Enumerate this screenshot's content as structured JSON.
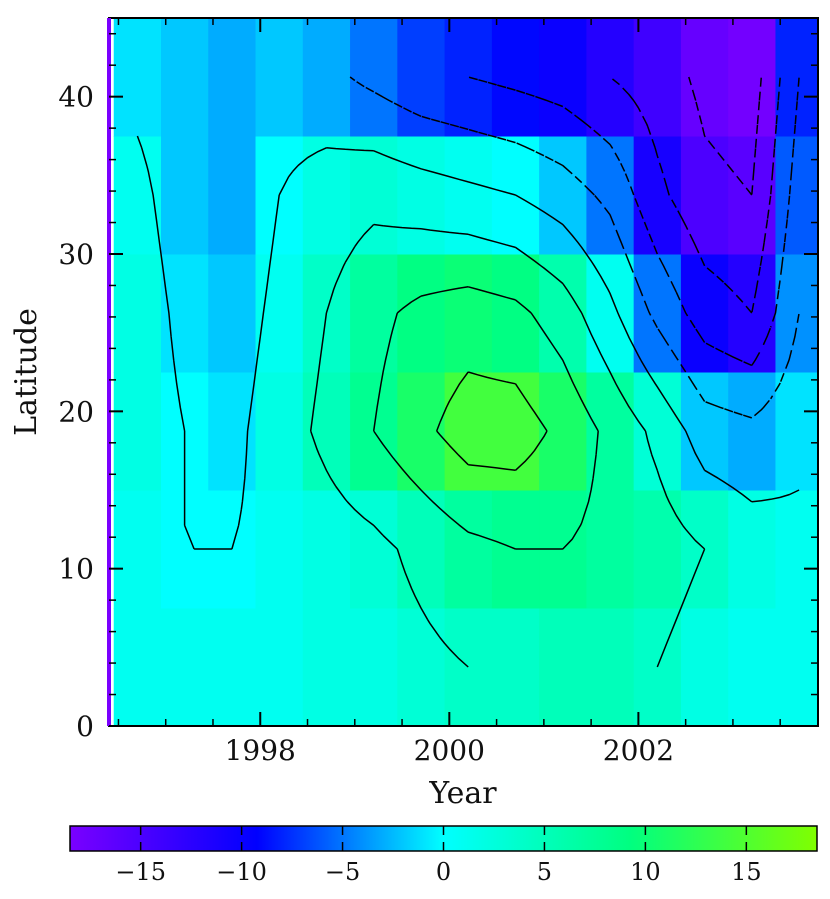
{
  "chart_data": {
    "type": "heatmap",
    "xlabel": "Year",
    "ylabel": "Latitude",
    "xlim": [
      1996.4,
      2003.9
    ],
    "ylim": [
      0,
      45
    ],
    "x_ticks": [
      {
        "value": 1998,
        "label": "1998"
      },
      {
        "value": 2000,
        "label": "2000"
      },
      {
        "value": 2002,
        "label": "2002"
      }
    ],
    "y_ticks": [
      {
        "value": 0,
        "label": "0"
      },
      {
        "value": 10,
        "label": "10"
      },
      {
        "value": 20,
        "label": "20"
      },
      {
        "value": 30,
        "label": "30"
      },
      {
        "value": 40,
        "label": "40"
      }
    ],
    "x_centers": [
      1996.7,
      1997.2,
      1997.7,
      1998.2,
      1998.7,
      1999.2,
      1999.7,
      2000.2,
      2000.7,
      2001.2,
      2001.7,
      2002.2,
      2002.7,
      2003.2,
      2003.7
    ],
    "x_edges": [
      1996.45,
      1996.95,
      1997.45,
      1997.95,
      1998.45,
      1998.95,
      1999.45,
      1999.95,
      2000.45,
      2000.95,
      2001.45,
      2001.95,
      2002.45,
      2002.95,
      2003.45,
      2003.95
    ],
    "y_centers": [
      3.75,
      11.25,
      18.75,
      26.25,
      33.75,
      41.25
    ],
    "y_edges": [
      0,
      7.5,
      15,
      22.5,
      30,
      37.5,
      45
    ],
    "values": [
      [
        1,
        1,
        1,
        1,
        2,
        2,
        3,
        4,
        4,
        5,
        5,
        4,
        2,
        1,
        1
      ],
      [
        1,
        0,
        0,
        1,
        2,
        3,
        5,
        7,
        8,
        8,
        7,
        6,
        4,
        2,
        1
      ],
      [
        2,
        0,
        -1,
        2,
        5,
        8,
        11,
        14,
        14,
        11,
        7,
        3,
        -2,
        -3,
        -1
      ],
      [
        2,
        -1,
        -2,
        1,
        4,
        7,
        9,
        10,
        9,
        6,
        1,
        -5,
        -10,
        -12,
        -4
      ],
      [
        1,
        -2,
        -3,
        0,
        2,
        3,
        2,
        1,
        0,
        -2,
        -5,
        -11,
        -15,
        -16,
        -6
      ],
      [
        -1,
        -2,
        -3,
        -2,
        -3,
        -5,
        -7,
        -8,
        -9,
        -10,
        -12,
        -14,
        -17,
        -18,
        -8
      ]
    ],
    "contour_levels": [
      -16,
      -12,
      -8,
      -4,
      0,
      4,
      8,
      12,
      16
    ],
    "colorbar": {
      "min": -18.5,
      "max": 18.5,
      "ticks": [
        {
          "value": -15,
          "label": "−15"
        },
        {
          "value": -10,
          "label": "−10"
        },
        {
          "value": -5,
          "label": "−5"
        },
        {
          "value": 0,
          "label": "0"
        },
        {
          "value": 5,
          "label": "5"
        },
        {
          "value": 10,
          "label": "10"
        },
        {
          "value": 15,
          "label": "15"
        }
      ],
      "colors": [
        "#7a00ff",
        "#0000ff",
        "#00ffff",
        "#00ff80",
        "#80ff00"
      ]
    },
    "grid": false,
    "legend": "colorbar-bottom"
  }
}
